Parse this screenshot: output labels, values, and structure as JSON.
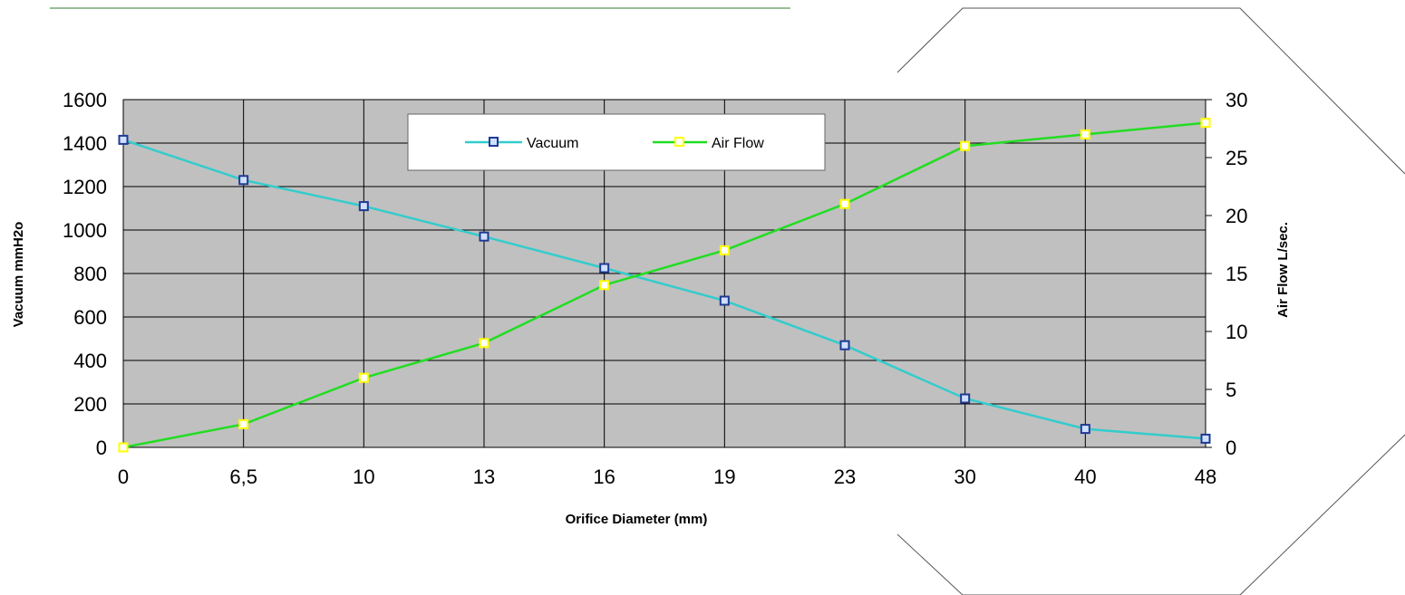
{
  "chart_data": {
    "type": "line",
    "categories": [
      "0",
      "6,5",
      "10",
      "13",
      "16",
      "19",
      "23",
      "30",
      "40",
      "48"
    ],
    "xlabel": "Orifice Diameter (mm)",
    "ylabel": "Vacuum mmH2o",
    "y2label": "Air Flow L/sec.",
    "ylim": [
      0,
      1600
    ],
    "y2lim": [
      0,
      30
    ],
    "yticks": [
      0,
      200,
      400,
      600,
      800,
      1000,
      1200,
      1400,
      1600
    ],
    "y2ticks": [
      0,
      5,
      10,
      15,
      20,
      25,
      30
    ],
    "grid": true,
    "legend_position": "top-center",
    "series": [
      {
        "name": "Vacuum",
        "axis": "left",
        "color": "#33cccc",
        "marker_color": "#1f3a93",
        "values": [
          1415,
          1230,
          1110,
          970,
          825,
          675,
          470,
          225,
          85,
          40
        ]
      },
      {
        "name": "Air Flow",
        "axis": "right",
        "color": "#22dd22",
        "marker_color": "#ffff00",
        "values": [
          0,
          2,
          6,
          9,
          14,
          17,
          21,
          26,
          27,
          28
        ]
      }
    ]
  }
}
